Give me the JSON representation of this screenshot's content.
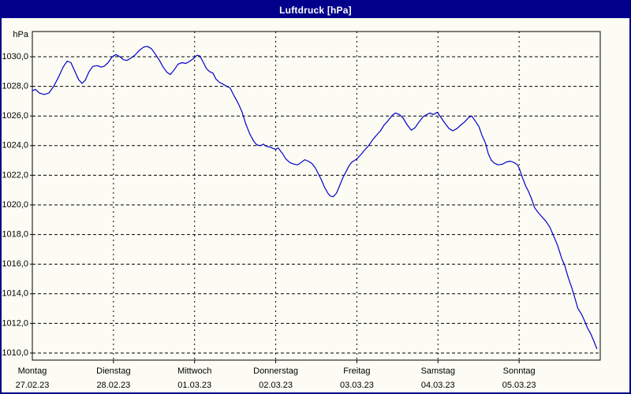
{
  "window": {
    "title": "Luftdruck [hPa]",
    "title_bar_color": "#00008B",
    "background_color": "#FCFCF4",
    "border_color": "#00008B"
  },
  "chart_data": {
    "type": "line",
    "title": "Luftdruck [hPa]",
    "y_unit": "hPa",
    "line_color": "#0000CD",
    "grid_color": "#000000",
    "grid_on": true,
    "ylim": [
      1009.5,
      1031.7
    ],
    "y_gridline_values": [
      1030,
      1028,
      1026,
      1024,
      1022,
      1020,
      1018,
      1016,
      1014,
      1012,
      1010
    ],
    "y_tick_labels": [
      "1030,0",
      "1028,0",
      "1026,0",
      "1024,0",
      "1022,0",
      "1020,0",
      "1018,0",
      "1016,0",
      "1014,0",
      "1012,0",
      "1010,0"
    ],
    "x_days": [
      {
        "name": "Montag",
        "date": "27.02.23"
      },
      {
        "name": "Dienstag",
        "date": "28.02.23"
      },
      {
        "name": "Mittwoch",
        "date": "01.03.23"
      },
      {
        "name": "Donnerstag",
        "date": "02.03.23"
      },
      {
        "name": "Freitag",
        "date": "03.03.23"
      },
      {
        "name": "Samstag",
        "date": "04.03.23"
      },
      {
        "name": "Sonntag",
        "date": "05.03.23"
      }
    ],
    "x_range_hours": [
      0,
      168
    ],
    "series": [
      {
        "name": "Luftdruck",
        "hours": [
          0,
          0.9,
          2.1,
          3.5,
          4.9,
          6.3,
          7.7,
          9.1,
          10.3,
          11.4,
          12.6,
          13.7,
          14.7,
          15.6,
          16.8,
          17.9,
          19.3,
          20.3,
          21.2,
          22.4,
          23.5,
          24.7,
          25.9,
          27,
          28,
          29.1,
          30.3,
          31.5,
          32.9,
          34,
          35.2,
          36.3,
          37.5,
          38.7,
          39.8,
          40.8,
          41.9,
          43.1,
          44.3,
          45.4,
          46.6,
          47.8,
          48.7,
          49.6,
          50.6,
          51.5,
          52.4,
          53.4,
          54.3,
          55.2,
          56.4,
          57.5,
          58.5,
          59.6,
          60.8,
          62,
          63.1,
          64.3,
          65.5,
          66.4,
          67.6,
          68.3,
          69.2,
          70.4,
          71.3,
          72,
          72.7,
          73.9,
          75,
          76.2,
          77.4,
          78.5,
          79.7,
          80.6,
          81.6,
          82.7,
          83.7,
          84.6,
          85.5,
          86.4,
          87.4,
          88.1,
          89,
          90,
          90.9,
          91.8,
          92.7,
          93.7,
          94.6,
          95.3,
          96,
          97.2,
          98.3,
          99.5,
          100.7,
          101.8,
          103,
          104.1,
          105.3,
          106.5,
          107.4,
          108.6,
          109.7,
          110.9,
          112.1,
          113.2,
          114.4,
          115.6,
          116.7,
          117.7,
          118.6,
          119.8,
          120.9,
          122.1,
          123.3,
          124.4,
          125.6,
          126.8,
          127.9,
          129.1,
          130,
          131.2,
          132.1,
          133,
          134,
          134.9,
          135.8,
          136.8,
          137.9,
          139.1,
          140.3,
          141.4,
          142.6,
          143.5,
          144,
          144.9,
          145.9,
          146.8,
          147.7,
          148.6,
          149.6,
          150.7,
          151.9,
          153.1,
          154.2,
          155.4,
          156.6,
          157.5,
          158.6,
          159.6,
          160.5,
          161.4,
          162.4,
          163.3,
          164.2,
          165.2,
          166.1,
          167
        ],
        "values": [
          1027.7,
          1027.8,
          1027.55,
          1027.45,
          1027.55,
          1028,
          1028.6,
          1029.3,
          1029.7,
          1029.6,
          1029,
          1028.45,
          1028.2,
          1028.4,
          1029,
          1029.35,
          1029.4,
          1029.3,
          1029.35,
          1029.6,
          1029.95,
          1030.15,
          1030,
          1029.8,
          1029.75,
          1029.9,
          1030.1,
          1030.4,
          1030.65,
          1030.7,
          1030.55,
          1030.2,
          1029.8,
          1029.3,
          1028.95,
          1028.8,
          1029.1,
          1029.5,
          1029.6,
          1029.55,
          1029.7,
          1029.9,
          1030.1,
          1030.05,
          1029.6,
          1029.2,
          1029,
          1028.9,
          1028.5,
          1028.3,
          1028.15,
          1028,
          1027.9,
          1027.4,
          1026.9,
          1026.3,
          1025.5,
          1024.8,
          1024.3,
          1024.05,
          1024,
          1024.1,
          1023.95,
          1023.9,
          1023.8,
          1023.75,
          1023.85,
          1023.5,
          1023.1,
          1022.85,
          1022.75,
          1022.7,
          1022.9,
          1023.05,
          1022.95,
          1022.8,
          1022.5,
          1022.1,
          1021.7,
          1021.2,
          1020.8,
          1020.6,
          1020.55,
          1020.8,
          1021.3,
          1021.8,
          1022.2,
          1022.65,
          1022.9,
          1023,
          1023.1,
          1023.4,
          1023.7,
          1024,
          1024.4,
          1024.7,
          1025,
          1025.4,
          1025.7,
          1026.05,
          1026.2,
          1026.1,
          1025.85,
          1025.4,
          1025.05,
          1025.2,
          1025.6,
          1025.95,
          1026.1,
          1026.2,
          1026.1,
          1026.25,
          1025.9,
          1025.5,
          1025.15,
          1025,
          1025.15,
          1025.4,
          1025.6,
          1025.9,
          1026,
          1025.6,
          1025.3,
          1024.7,
          1024.2,
          1023.45,
          1023,
          1022.8,
          1022.7,
          1022.75,
          1022.9,
          1022.95,
          1022.85,
          1022.7,
          1022.5,
          1021.9,
          1021.3,
          1020.9,
          1020.4,
          1019.8,
          1019.5,
          1019.2,
          1018.9,
          1018.5,
          1017.9,
          1017.25,
          1016.4,
          1015.9,
          1015.05,
          1014.4,
          1013.7,
          1013,
          1012.65,
          1012.2,
          1011.7,
          1011.3,
          1010.8,
          1010.3
        ]
      }
    ]
  }
}
